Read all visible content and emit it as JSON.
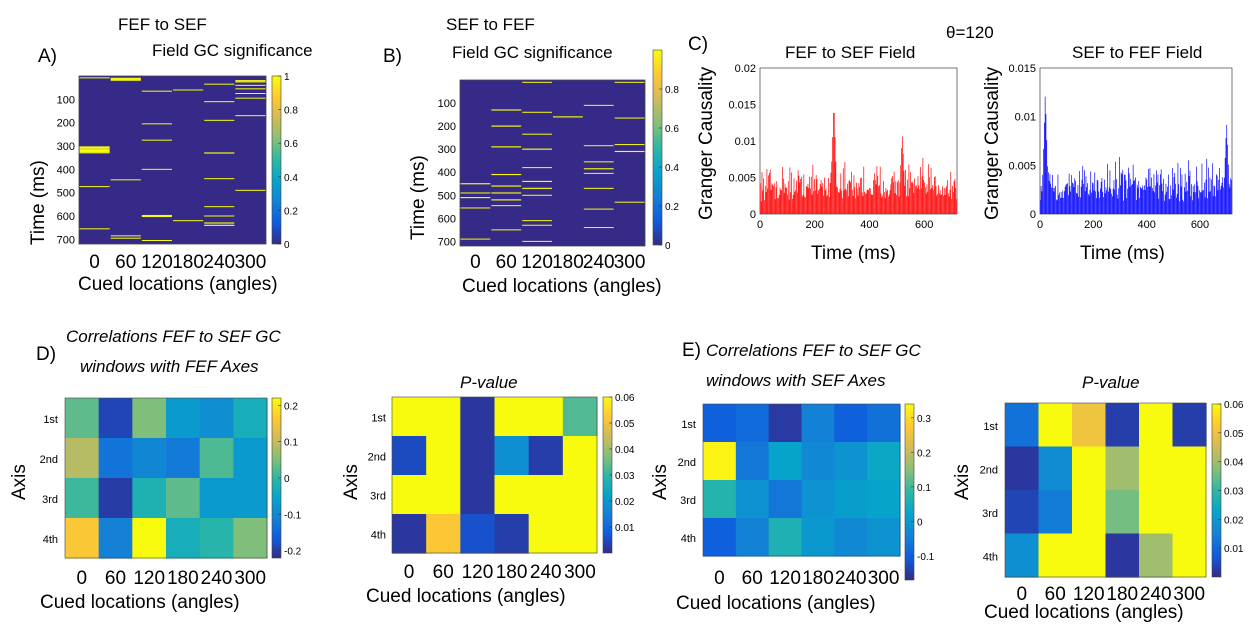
{
  "chart_data": [
    {
      "type": "heatmap",
      "panel_label": "A)",
      "title_line1": "FEF to SEF",
      "title_line2": "Field GC significance",
      "xlabel": "Cued locations (angles)",
      "ylabel": "Time (ms)",
      "x": [
        "0",
        "60",
        "120",
        "180",
        "240",
        "300"
      ],
      "y_ticks": [
        "100",
        "200",
        "300",
        "400",
        "500",
        "600",
        "700"
      ],
      "y_range": [
        0,
        720
      ],
      "colorbar_ticks": [
        "0",
        "0.2",
        "0.4",
        "0.6",
        "0.8",
        "1"
      ],
      "colorbar_range": [
        0,
        1
      ],
      "lines": [
        [
          0,
          8,
          1
        ],
        [
          0,
          304,
          5
        ],
        [
          0,
          309,
          5
        ],
        [
          0,
          314,
          5
        ],
        [
          0,
          319,
          5
        ],
        [
          0,
          324,
          5
        ],
        [
          0,
          329,
          5
        ],
        [
          0,
          474,
          1
        ],
        [
          0,
          655,
          1
        ],
        [
          1,
          10,
          5
        ],
        [
          1,
          14,
          5
        ],
        [
          1,
          18,
          5
        ],
        [
          1,
          445,
          1
        ],
        [
          1,
          685,
          1
        ],
        [
          1,
          695,
          1
        ],
        [
          2,
          65,
          1
        ],
        [
          2,
          205,
          1
        ],
        [
          2,
          275,
          1
        ],
        [
          2,
          400,
          1
        ],
        [
          2,
          598,
          5
        ],
        [
          2,
          602,
          5
        ],
        [
          2,
          705,
          1
        ],
        [
          3,
          60,
          1
        ],
        [
          3,
          620,
          1
        ],
        [
          4,
          35,
          1
        ],
        [
          4,
          110,
          1
        ],
        [
          4,
          190,
          1
        ],
        [
          4,
          330,
          5
        ],
        [
          4,
          440,
          1
        ],
        [
          4,
          560,
          1
        ],
        [
          4,
          600,
          1
        ],
        [
          4,
          630,
          5
        ],
        [
          4,
          640,
          5
        ],
        [
          5,
          20,
          5
        ],
        [
          5,
          25,
          5
        ],
        [
          5,
          40,
          1
        ],
        [
          5,
          55,
          1
        ],
        [
          5,
          75,
          1
        ],
        [
          5,
          95,
          1
        ],
        [
          5,
          170,
          1
        ],
        [
          5,
          490,
          1
        ]
      ]
    },
    {
      "type": "heatmap",
      "panel_label": "B)",
      "title_line1": "SEF to FEF",
      "title_line2": "Field GC significance",
      "xlabel": "Cued locations (angles)",
      "ylabel": "Time (ms)",
      "x": [
        "0",
        "60",
        "120",
        "180",
        "240",
        "300"
      ],
      "y_ticks": [
        "100",
        "200",
        "300",
        "400",
        "500",
        "600",
        "700"
      ],
      "y_range": [
        0,
        720
      ],
      "colorbar_ticks": [
        "0",
        "0.2",
        "0.4",
        "0.6",
        "0.8"
      ],
      "colorbar_range": [
        0,
        1
      ],
      "lines": [
        [
          0,
          450,
          5
        ],
        [
          0,
          490,
          1
        ],
        [
          0,
          510,
          5
        ],
        [
          0,
          555,
          1
        ],
        [
          0,
          690,
          1
        ],
        [
          1,
          130,
          5
        ],
        [
          1,
          200,
          5
        ],
        [
          1,
          290,
          5
        ],
        [
          1,
          410,
          5
        ],
        [
          1,
          460,
          5
        ],
        [
          1,
          490,
          5
        ],
        [
          1,
          520,
          5
        ],
        [
          1,
          545,
          1
        ],
        [
          1,
          650,
          1
        ],
        [
          2,
          10,
          1
        ],
        [
          2,
          140,
          1
        ],
        [
          2,
          235,
          1
        ],
        [
          2,
          300,
          5
        ],
        [
          2,
          380,
          1
        ],
        [
          2,
          440,
          5
        ],
        [
          2,
          470,
          5
        ],
        [
          2,
          500,
          1
        ],
        [
          2,
          610,
          1
        ],
        [
          2,
          630,
          1
        ],
        [
          2,
          700,
          1
        ],
        [
          3,
          160,
          5
        ],
        [
          4,
          110,
          1
        ],
        [
          4,
          285,
          1
        ],
        [
          4,
          355,
          1
        ],
        [
          4,
          385,
          5
        ],
        [
          4,
          405,
          1
        ],
        [
          4,
          470,
          1
        ],
        [
          4,
          560,
          1
        ],
        [
          4,
          640,
          1
        ],
        [
          5,
          10,
          1
        ],
        [
          5,
          165,
          1
        ],
        [
          5,
          280,
          1
        ],
        [
          5,
          310,
          5
        ],
        [
          5,
          530,
          1
        ]
      ]
    },
    {
      "type": "bar",
      "panel_label": "C)",
      "theta_label": "θ=120",
      "title": "FEF to SEF Field",
      "xlabel": "Time (ms)",
      "ylabel": "Granger Causality",
      "x_ticks": [
        "0",
        "200",
        "400",
        "600"
      ],
      "y_ticks": [
        "0",
        "0.005",
        "0.01",
        "0.015",
        "0.02"
      ],
      "xlim": [
        0,
        720
      ],
      "ylim": [
        0,
        0.02
      ],
      "color": "#ff0000",
      "series_note_peaks": [
        [
          270,
          0.0155
        ],
        [
          520,
          0.011
        ]
      ]
    },
    {
      "type": "bar",
      "title": "SEF to FEF Field",
      "xlabel": "Time (ms)",
      "ylabel": "Granger Causality",
      "x_ticks": [
        "0",
        "200",
        "400",
        "600"
      ],
      "y_ticks": [
        "0",
        "0.005",
        "0.01",
        "0.015"
      ],
      "xlim": [
        0,
        720
      ],
      "ylim": [
        0,
        0.015
      ],
      "color": "#0000ff",
      "series_note_peaks": [
        [
          20,
          0.0125
        ],
        [
          700,
          0.0095
        ]
      ]
    },
    {
      "type": "heatmap",
      "panel_label": "D)",
      "title_line1": "Correlations FEF to SEF GC",
      "title_line2": "windows with FEF Axes",
      "xlabel": "Cued locations (angles)",
      "ylabel": "Axis",
      "x": [
        "0",
        "60",
        "120",
        "180",
        "240",
        "300"
      ],
      "y": [
        "1st",
        "2nd",
        "3rd",
        "4th"
      ],
      "colorbar_ticks": [
        "-0.2",
        "-0.1",
        "0",
        "0.1",
        "0.2"
      ],
      "colorbar_range": [
        -0.22,
        0.22
      ],
      "values": [
        [
          0.03,
          -0.19,
          0.05,
          -0.07,
          -0.09,
          -0.03
        ],
        [
          0.09,
          -0.13,
          -0.1,
          -0.12,
          0.02,
          -0.07
        ],
        [
          0.01,
          -0.2,
          -0.02,
          0.03,
          -0.07,
          -0.07
        ],
        [
          0.16,
          -0.11,
          0.22,
          -0.03,
          -0.01,
          0.05
        ]
      ]
    },
    {
      "type": "heatmap",
      "title": "P-value",
      "xlabel": "Cued locations (angles)",
      "ylabel": "Axis",
      "x": [
        "0",
        "60",
        "120",
        "180",
        "240",
        "300"
      ],
      "y": [
        "1st",
        "2nd",
        "3rd",
        "4th"
      ],
      "colorbar_ticks": [
        "0.01",
        "0.02",
        "0.03",
        "0.04",
        "0.05",
        "0.06"
      ],
      "colorbar_range": [
        0.0,
        0.06
      ],
      "values": [
        [
          0.06,
          0.06,
          0.002,
          0.06,
          0.06,
          0.033
        ],
        [
          0.005,
          0.06,
          0.002,
          0.018,
          0.003,
          0.06
        ],
        [
          0.06,
          0.06,
          0.002,
          0.06,
          0.06,
          0.06
        ],
        [
          0.002,
          0.052,
          0.006,
          0.003,
          0.06,
          0.06
        ]
      ]
    },
    {
      "type": "heatmap",
      "panel_label": "E)",
      "title_line1": "Correlations FEF to SEF GC",
      "title_line2": "windows with SEF Axes",
      "xlabel": "Cued locations (angles)",
      "ylabel": "Axis",
      "x": [
        "0",
        "60",
        "120",
        "180",
        "240",
        "300"
      ],
      "y": [
        "1st",
        "2nd",
        "3rd",
        "4th"
      ],
      "colorbar_ticks": [
        "-0.1",
        "0",
        "0.1",
        "0.2",
        "0.3"
      ],
      "colorbar_range": [
        -0.17,
        0.34
      ],
      "values": [
        [
          -0.1,
          -0.08,
          -0.15,
          -0.04,
          -0.1,
          -0.07
        ],
        [
          0.33,
          -0.06,
          0.02,
          -0.03,
          -0.01,
          0.03
        ],
        [
          0.07,
          -0.01,
          -0.06,
          -0.01,
          0.01,
          0.02
        ],
        [
          -0.1,
          -0.04,
          0.06,
          0.0,
          -0.03,
          -0.01
        ]
      ]
    },
    {
      "type": "heatmap",
      "title": "P-value",
      "xlabel": "Cued locations (angles)",
      "ylabel": "Axis",
      "x": [
        "0",
        "60",
        "120",
        "180",
        "240",
        "300"
      ],
      "y": [
        "1st",
        "2nd",
        "3rd",
        "4th"
      ],
      "colorbar_ticks": [
        "0.01",
        "0.02",
        "0.03",
        "0.04",
        "0.05",
        "0.06"
      ],
      "colorbar_range": [
        0.0,
        0.06
      ],
      "values": [
        [
          0.012,
          0.06,
          0.05,
          0.003,
          0.06,
          0.003
        ],
        [
          0.002,
          0.017,
          0.06,
          0.04,
          0.06,
          0.06
        ],
        [
          0.004,
          0.014,
          0.06,
          0.036,
          0.06,
          0.06
        ],
        [
          0.018,
          0.06,
          0.06,
          0.002,
          0.04,
          0.06
        ]
      ]
    }
  ]
}
